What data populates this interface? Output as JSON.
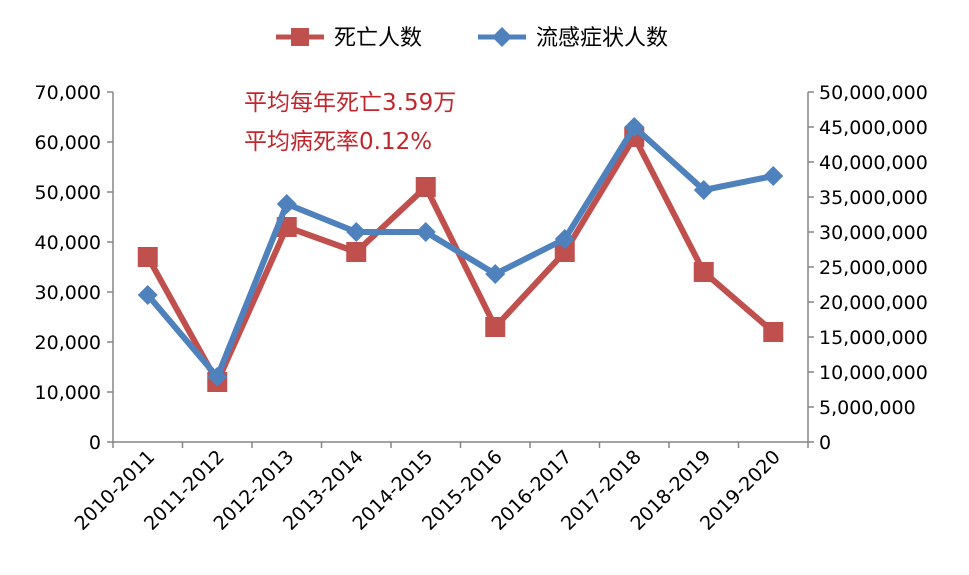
{
  "chart_data": {
    "type": "line",
    "categories": [
      "2010-2011",
      "2011-2012",
      "2012-2013",
      "2013-2014",
      "2014-2015",
      "2015-2016",
      "2016-2017",
      "2017-2018",
      "2018-2019",
      "2019-2020"
    ],
    "series": [
      {
        "name": "死亡人数",
        "axis": "left",
        "color": "#c0504d",
        "marker": "square",
        "values": [
          37000,
          12000,
          43000,
          38000,
          51000,
          23000,
          38000,
          61000,
          34000,
          22000
        ]
      },
      {
        "name": "流感症状人数",
        "axis": "right",
        "color": "#4f81bd",
        "marker": "diamond",
        "values": [
          21000000,
          9300000,
          34000000,
          30000000,
          30000000,
          24000000,
          29000000,
          45000000,
          36000000,
          38000000
        ]
      }
    ],
    "ylim_left": [
      0,
      70000
    ],
    "yticks_left": [
      "0",
      "10,000",
      "20,000",
      "30,000",
      "40,000",
      "50,000",
      "60,000",
      "70,000"
    ],
    "ylim_right": [
      0,
      50000000
    ],
    "yticks_right": [
      "0",
      "5,000,000",
      "10,000,000",
      "15,000,000",
      "20,000,000",
      "25,000,000",
      "30,000,000",
      "35,000,000",
      "40,000,000",
      "45,000,000",
      "50,000,000"
    ],
    "annotations": [
      "平均每年死亡3.59万",
      "平均病死率0.12%"
    ],
    "legend_position": "top-center",
    "grid": false
  }
}
